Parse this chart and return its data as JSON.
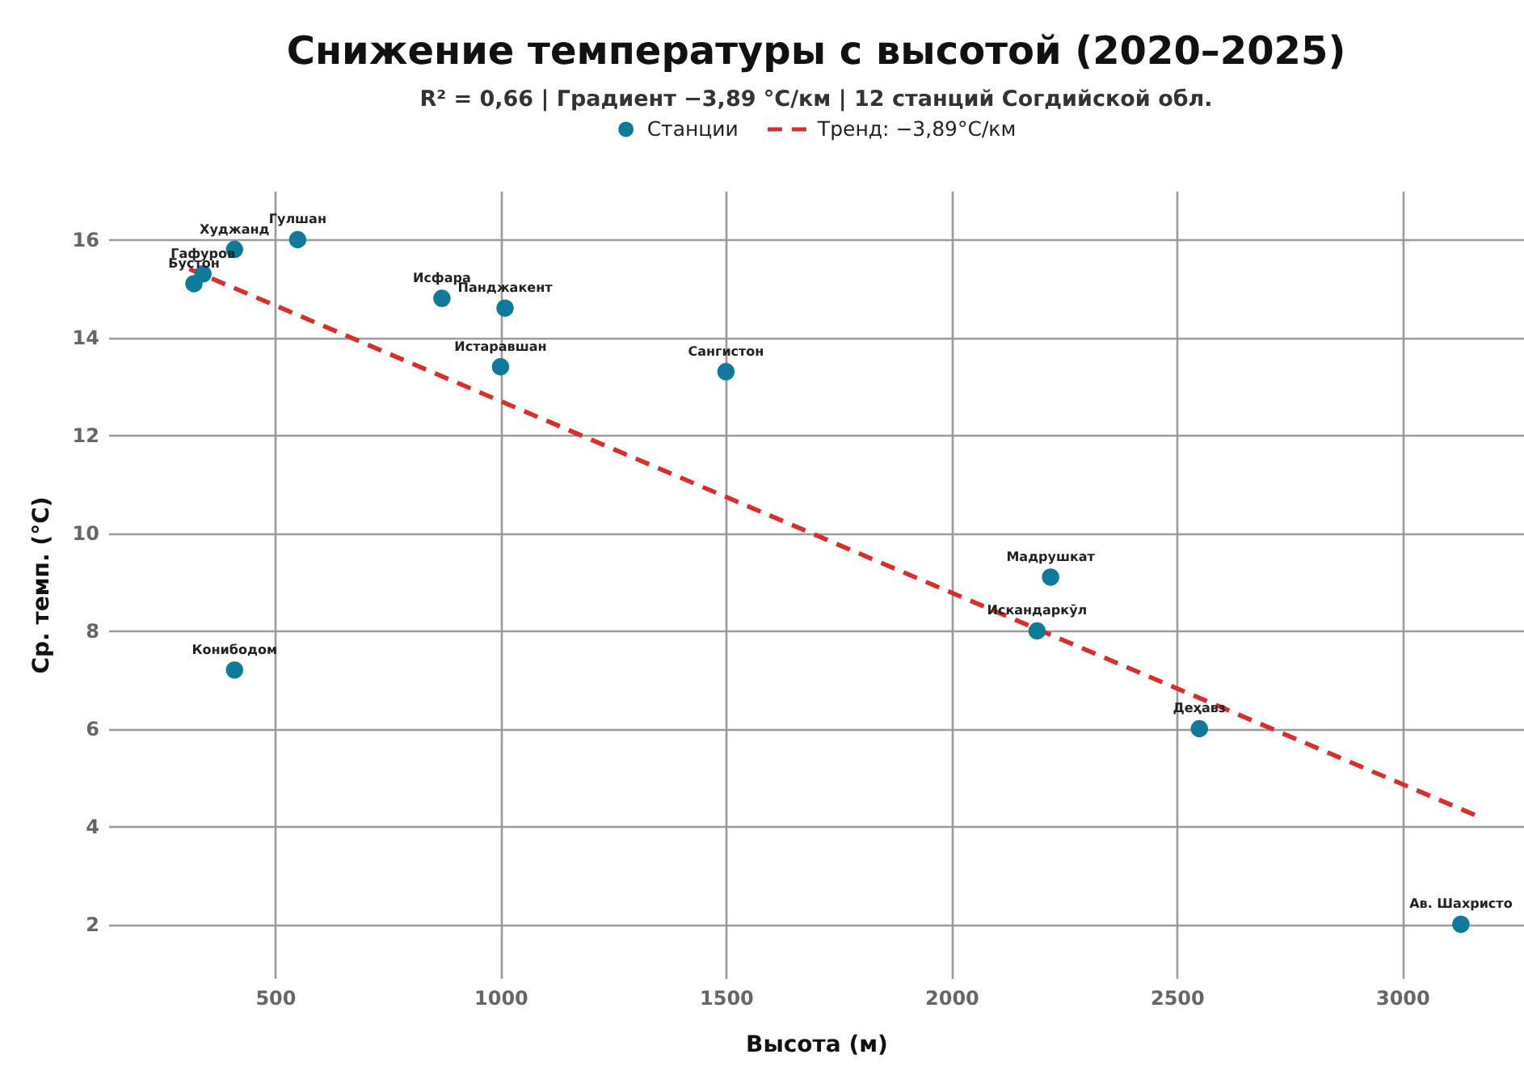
{
  "chart_data": {
    "type": "scatter",
    "title": "Снижение температуры с высотой (2020–2025)",
    "subtitle": "R² = 0,66 | Градиент −3,89 °C/км | 12 станций Согдийской обл.",
    "xlabel": "Высота (м)",
    "ylabel": "Ср. темп. (°C)",
    "xlim": [
      130,
      3270
    ],
    "ylim": [
      0.9,
      17
    ],
    "xticks": [
      500,
      1000,
      1500,
      2000,
      2500,
      3000
    ],
    "yticks": [
      2,
      4,
      6,
      8,
      10,
      12,
      14,
      16
    ],
    "grid": true,
    "legend": "top",
    "series": [
      {
        "name": "Станции",
        "type": "scatter",
        "marker": "circle",
        "color": "#117a9a",
        "x": [
          320,
          340,
          410,
          410,
          550,
          870,
          1000,
          1010,
          1500,
          2190,
          2220,
          2550,
          3130
        ],
        "values": [
          15.1,
          15.3,
          15.8,
          7.2,
          16.0,
          14.8,
          13.4,
          14.6,
          13.3,
          8.0,
          9.1,
          6.0,
          2.0
        ]
      },
      {
        "name": "Тренд: −3,89°C/км",
        "type": "line",
        "line_style": "dashed",
        "color": "#d62f2f",
        "x": [
          310,
          3170
        ],
        "values": [
          15.4,
          4.2
        ]
      }
    ],
    "annotations": [
      {
        "text": "Бустон",
        "x": 320,
        "y": 15.1
      },
      {
        "text": "Гафуров",
        "x": 340,
        "y": 15.3
      },
      {
        "text": "Худжанд",
        "x": 410,
        "y": 15.8
      },
      {
        "text": "Конибодом",
        "x": 410,
        "y": 7.2
      },
      {
        "text": "Гулшан",
        "x": 550,
        "y": 16.0
      },
      {
        "text": "Исфара",
        "x": 870,
        "y": 14.8
      },
      {
        "text": "Истаравшан",
        "x": 1000,
        "y": 13.4
      },
      {
        "text": "Панджакент",
        "x": 1010,
        "y": 14.6
      },
      {
        "text": "Сангистон",
        "x": 1500,
        "y": 13.3
      },
      {
        "text": "Искандаркӯл",
        "x": 2190,
        "y": 8.0
      },
      {
        "text": "Мадрушкат",
        "x": 2220,
        "y": 9.1
      },
      {
        "text": "Деҳавз",
        "x": 2550,
        "y": 6.0
      },
      {
        "text": "Ав. Шахристо",
        "x": 3130,
        "y": 2.0
      }
    ]
  }
}
